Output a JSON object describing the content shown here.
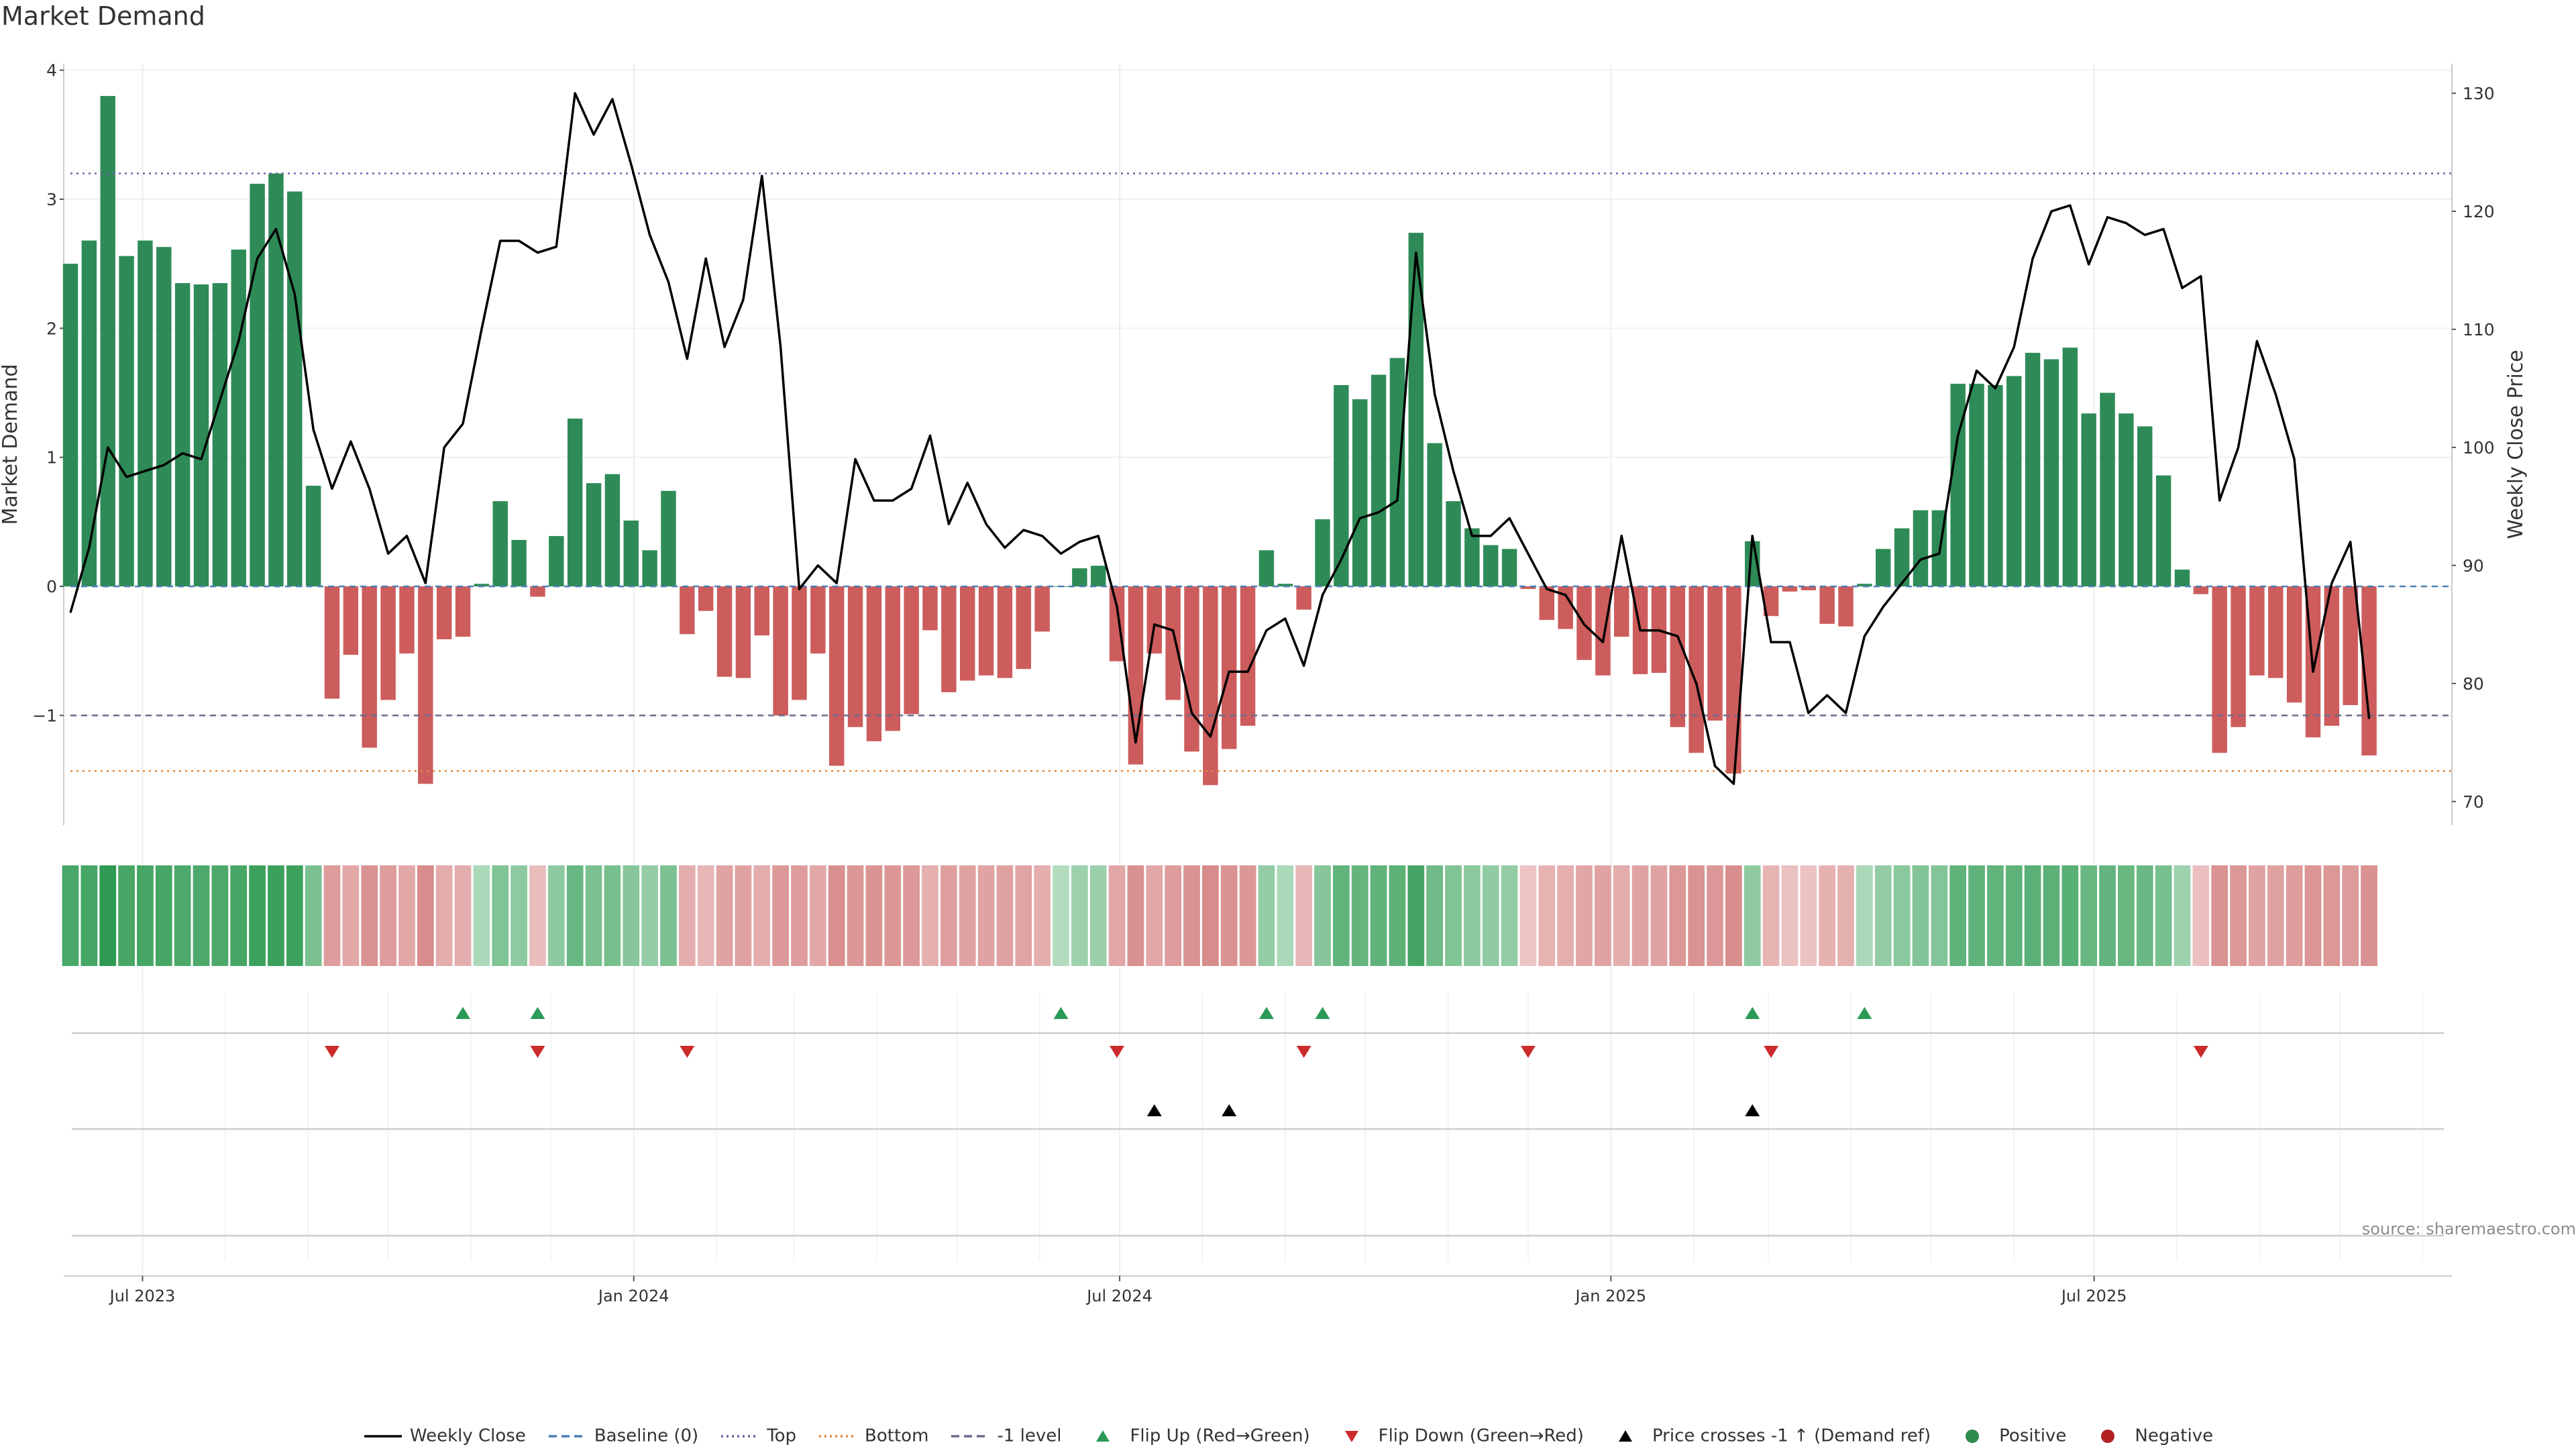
{
  "chart_data": {
    "type": "bar+line",
    "title": "Market Demand",
    "ylabel_left": "Market Demand",
    "ylabel_right": "Weekly Close Price",
    "source": "source: sharemaestro.com",
    "left_axis": {
      "ylim": [
        -1.85,
        4.05
      ],
      "ticks": [
        -1,
        0,
        1,
        2,
        3,
        4
      ],
      "tick_labels": [
        "−1",
        "0",
        "1",
        "2",
        "3",
        "4"
      ]
    },
    "right_axis": {
      "ylim": [
        68.0,
        132.5
      ],
      "ticks": [
        70,
        80,
        90,
        100,
        110,
        120,
        130
      ],
      "tick_labels": [
        "70",
        "80",
        "90",
        "100",
        "110",
        "120",
        "130"
      ]
    },
    "x_axis": {
      "start_date": "2023-06-04",
      "end_date": "2025-11-09",
      "ticks": [
        "2023-07-01",
        "2024-01-01",
        "2024-07-01",
        "2025-01-01",
        "2025-07-01"
      ],
      "tick_labels": [
        "Jul 2023",
        "Jan 2024",
        "Jul 2024",
        "Jan 2025",
        "Jul 2025"
      ]
    },
    "reference_lines": [
      {
        "name": "Top",
        "value": 3.2,
        "style": "dotted",
        "color": "#6b63a6"
      },
      {
        "name": "Bottom",
        "value": -1.43,
        "style": "dotted",
        "color": "#e0893a"
      },
      {
        "name": "-1 level",
        "value": -1.0,
        "style": "dashed",
        "color": "#6b6b8a"
      },
      {
        "name": "Baseline (0)",
        "value": 0,
        "style": "dashed",
        "color": "#4a7fb5"
      }
    ],
    "demand_values": [
      2.5,
      2.68,
      3.8,
      2.56,
      2.68,
      2.63,
      2.35,
      2.34,
      2.35,
      2.61,
      3.12,
      3.2,
      3.06,
      0.78,
      -0.87,
      -0.53,
      -1.25,
      -0.88,
      -0.52,
      -1.53,
      -0.41,
      -0.39,
      0.02,
      0.66,
      0.36,
      -0.08,
      0.39,
      1.3,
      0.8,
      0.87,
      0.51,
      0.28,
      0.74,
      -0.37,
      -0.19,
      -0.7,
      -0.71,
      -0.38,
      -1.0,
      -0.88,
      -0.52,
      -1.39,
      -1.09,
      -1.2,
      -1.12,
      -0.99,
      -0.34,
      -0.82,
      -0.73,
      -0.69,
      -0.71,
      -0.64,
      -0.35,
      0.0,
      0.14,
      0.16,
      -0.58,
      -1.38,
      -0.52,
      -0.88,
      -1.28,
      -1.54,
      -1.26,
      -1.08,
      0.28,
      0.02,
      -0.18,
      0.52,
      1.56,
      1.45,
      1.64,
      1.77,
      2.74,
      1.11,
      0.66,
      0.45,
      0.32,
      0.29,
      -0.02,
      -0.26,
      -0.33,
      -0.57,
      -0.69,
      -0.39,
      -0.68,
      -0.67,
      -1.09,
      -1.29,
      -1.04,
      -1.45,
      0.35,
      -0.23,
      -0.04,
      -0.03,
      -0.29,
      -0.31,
      0.02,
      0.29,
      0.45,
      0.59,
      0.59,
      1.57,
      1.57,
      1.56,
      1.63,
      1.81,
      1.76,
      1.85,
      1.34,
      1.5,
      1.34,
      1.24,
      0.86,
      0.13,
      -0.06,
      -1.29,
      -1.09,
      -0.69,
      -0.71,
      -0.9,
      -1.17,
      -1.08,
      -0.92,
      -1.31
    ],
    "close_values": [
      86.0,
      91.5,
      100.0,
      97.5,
      98.0,
      98.5,
      99.5,
      99.0,
      104.0,
      109.0,
      116.0,
      118.5,
      113.0,
      101.5,
      96.5,
      100.5,
      96.5,
      91.0,
      92.5,
      88.5,
      100.0,
      102.0,
      110.0,
      117.5,
      117.5,
      116.5,
      117.0,
      130.0,
      126.5,
      129.5,
      124.0,
      118.0,
      114.0,
      107.5,
      116.0,
      108.5,
      112.5,
      123.0,
      108.5,
      88.0,
      90.0,
      88.5,
      99.0,
      95.5,
      95.5,
      96.5,
      101.0,
      93.5,
      97.0,
      93.5,
      91.5,
      93.0,
      92.5,
      91.0,
      92.0,
      92.5,
      86.5,
      75.0,
      85.0,
      84.5,
      77.5,
      75.5,
      81.0,
      81.0,
      84.5,
      85.5,
      81.5,
      87.5,
      90.5,
      94.0,
      94.5,
      95.5,
      116.5,
      104.5,
      98.0,
      92.5,
      92.5,
      94.0,
      91.0,
      88.0,
      87.5,
      85.0,
      83.5,
      92.5,
      84.5,
      84.5,
      84.0,
      80.0,
      73.0,
      71.5,
      92.5,
      83.5,
      83.5,
      77.5,
      79.0,
      77.5,
      84.0,
      86.5,
      88.5,
      90.5,
      91.0,
      101.0,
      106.5,
      105.0,
      108.5,
      116.0,
      120.0,
      120.5,
      115.5,
      119.5,
      119.0,
      118.0,
      118.5,
      113.5,
      114.5,
      95.5,
      100.0,
      109.0,
      104.5,
      99.0,
      81.0,
      88.5,
      92.0,
      77.0
    ],
    "flip_up_weeks": [
      21,
      25,
      53,
      64,
      67,
      90,
      96
    ],
    "flip_down_weeks": [
      14,
      25,
      33,
      56,
      66,
      78,
      91,
      114
    ],
    "price_cross_weeks": [
      58,
      62,
      90
    ],
    "legend": [
      {
        "label": "Weekly Close",
        "kind": "line",
        "color": "#000000"
      },
      {
        "label": "Baseline (0)",
        "kind": "dashed",
        "color": "#4a7fb5"
      },
      {
        "label": "Top",
        "kind": "dotted",
        "color": "#6b63a6"
      },
      {
        "label": "Bottom",
        "kind": "dotted",
        "color": "#e0893a"
      },
      {
        "label": "-1 level",
        "kind": "dashed",
        "color": "#6b6b8a"
      },
      {
        "label": "Flip Up (Red→Green)",
        "kind": "tri-up",
        "color": "#2b9a57"
      },
      {
        "label": "Flip Down (Green→Red)",
        "kind": "tri-down",
        "color": "#cc2b2b"
      },
      {
        "label": "Price crosses -1 ↑ (Demand ref)",
        "kind": "tri-up",
        "color": "#000000"
      },
      {
        "label": "Positive",
        "kind": "dot",
        "color": "#2e8b4f"
      },
      {
        "label": "Negative",
        "kind": "dot",
        "color": "#b22222"
      }
    ],
    "colors": {
      "positive_bar": "#2e8b57",
      "negative_bar": "#cd5c5c",
      "close_line": "#000000"
    }
  }
}
